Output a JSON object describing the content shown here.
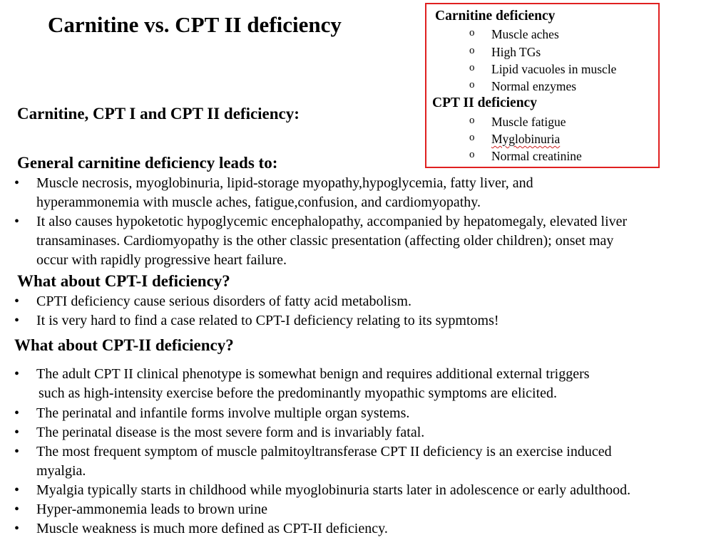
{
  "title": "Carnitine vs. CPT II deficiency",
  "box": {
    "carnitine_heading": "Carnitine deficiency",
    "carnitine_items": [
      "Muscle aches",
      "High TGs",
      "Lipid vacuoles in muscle",
      "Normal enzymes"
    ],
    "cpt2_heading": "CPT II deficiency",
    "cpt2_items": [
      "Muscle fatigue",
      "Myglobinuria",
      "Normal creatinine"
    ],
    "bullet": "o"
  },
  "subtitle": "Carnitine, CPT I and CPT II deficiency:",
  "general": {
    "heading": "General carnitine deficiency leads to:",
    "b1_l1": "Muscle necrosis, myoglobinuria, lipid-storage myopathy,hypoglycemia, fatty liver, and",
    "b1_l2": "hyperammonemia with muscle aches, fatigue,confusion, and cardiomyopathy.",
    "b2_l1": "It also causes hypoketotic hypoglycemic encephalopathy, accompanied by hepatomegaly, elevated liver",
    "b2_l2": "transaminases. Cardiomyopathy is the other classic presentation (affecting older children); onset may",
    "b2_l3": "occur with rapidly progressive heart failure."
  },
  "cpt1": {
    "heading": "What about CPT-I deficiency?",
    "b1": "CPTI deficiency cause serious disorders of fatty acid metabolism.",
    "b2": "It is very hard to find a case related to CPT-I deficiency relating to its sypmtoms!"
  },
  "cpt2": {
    "heading": "What about CPT-II deficiency?",
    "b1_l1": "The adult CPT II clinical phenotype is somewhat benign and requires additional external triggers",
    "b1_l2": "such as high-intensity exercise before the predominantly myopathic symptoms are elicited.",
    "b2": "The perinatal and infantile forms involve multiple organ systems.",
    "b3": "The perinatal disease is the most severe form and is invariably fatal.",
    "b4_l1": "The most frequent symptom of muscle palmitoyltransferase CPT II deficiency is an exercise induced",
    "b4_l2": "myalgia.",
    "b5": "Myalgia typically starts in childhood while myoglobinuria starts later in adolescence or early adulthood.",
    "b6": "Hyper-ammonemia leads to brown urine",
    "b7": "Muscle weakness is much more defined as CPT-II deficiency."
  },
  "bullet": "•"
}
